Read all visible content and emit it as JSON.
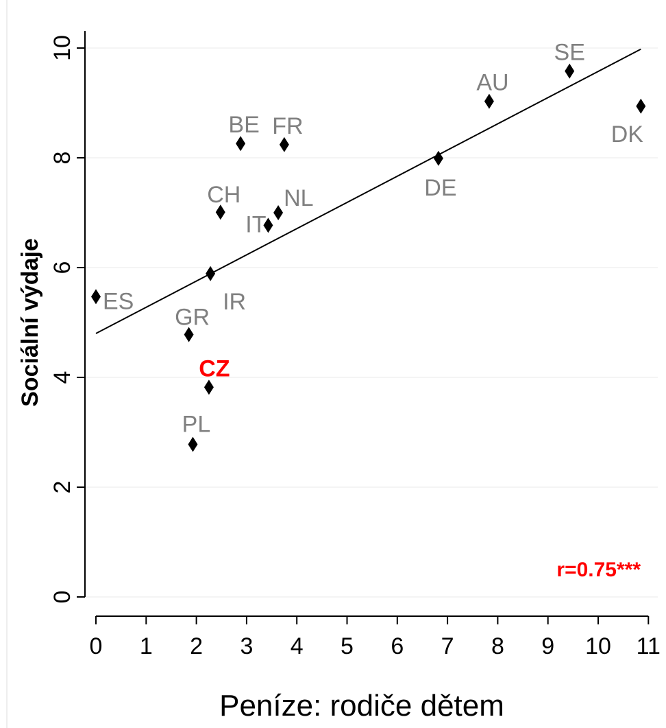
{
  "chart_data": {
    "type": "scatter",
    "xlabel": "Peníze: rodiče dětem",
    "ylabel": "Sociální výdaje",
    "xlim": [
      0,
      11
    ],
    "ylim": [
      0,
      10
    ],
    "x_ticks": [
      "0",
      "1",
      "2",
      "3",
      "4",
      "5",
      "6",
      "7",
      "8",
      "9",
      "10",
      "11"
    ],
    "y_ticks": [
      "0",
      "2",
      "4",
      "6",
      "8",
      "10"
    ],
    "grid": "horizontal",
    "points": [
      {
        "label": "ES",
        "x": 0.0,
        "y": 5.47
      },
      {
        "label": "GR",
        "x": 1.85,
        "y": 4.78
      },
      {
        "label": "CZ",
        "x": 2.25,
        "y": 3.82,
        "highlight": true
      },
      {
        "label": "PL",
        "x": 1.93,
        "y": 2.78
      },
      {
        "label": "IR",
        "x": 2.28,
        "y": 5.89
      },
      {
        "label": "CH",
        "x": 2.48,
        "y": 7.01
      },
      {
        "label": "BE",
        "x": 2.88,
        "y": 8.26
      },
      {
        "label": "IT",
        "x": 3.43,
        "y": 6.77
      },
      {
        "label": "NL",
        "x": 3.63,
        "y": 7.0
      },
      {
        "label": "FR",
        "x": 3.75,
        "y": 8.24
      },
      {
        "label": "DE",
        "x": 6.82,
        "y": 7.99
      },
      {
        "label": "AU",
        "x": 7.83,
        "y": 9.03
      },
      {
        "label": "SE",
        "x": 9.43,
        "y": 9.58
      },
      {
        "label": "DK",
        "x": 10.85,
        "y": 8.94
      }
    ],
    "fit_line": {
      "x": [
        0.0,
        10.85
      ],
      "y": [
        4.8,
        9.98
      ]
    },
    "annotation": "r=0.75***",
    "colors": {
      "label": "#808080",
      "highlight": "#ff0000",
      "marker": "#000000",
      "line": "#000000",
      "grid": "#e8e8e8"
    }
  }
}
